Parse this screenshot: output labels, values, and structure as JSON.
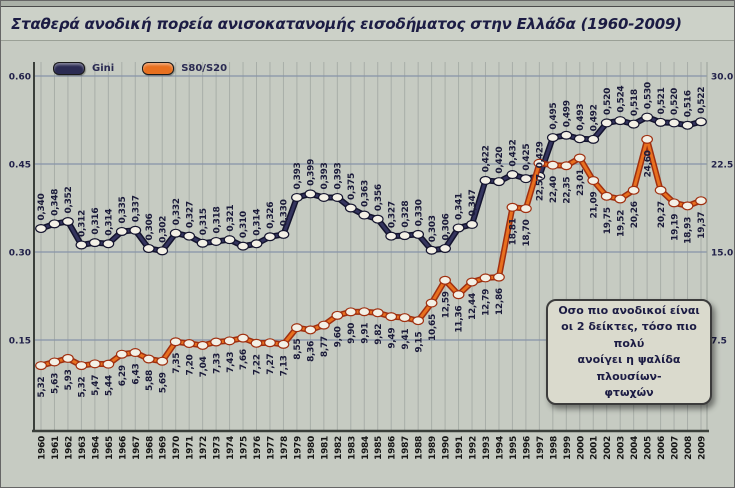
{
  "title": "Σταθερά ανοδική πορεία ανισοκατανομής εισοδήματος στην Ελλάδα (1960-2009)",
  "legend": [
    {
      "label": "Gini",
      "color": "#2b2b52"
    },
    {
      "label": "S80/S20",
      "color": "#e8701f"
    }
  ],
  "annotation": {
    "lines": [
      "Οσο πιο ανοδικοί είναι",
      "οι 2 δείκτες, τόσο πιο πολύ",
      "ανοίγει η ψαλίδα πλουσίων-",
      "φτωχών"
    ]
  },
  "chart_data": {
    "type": "line",
    "title": "Σταθερά ανοδική πορεία ανισοκατανομής εισοδήματος στην Ελλάδα (1960-2009)",
    "grid": true,
    "legend_position": "top-left",
    "decimal_separator": ",",
    "x_years": [
      "1960",
      "1961",
      "1962",
      "1963",
      "1964",
      "1965",
      "1966",
      "1967",
      "1968",
      "1969",
      "1970",
      "1971",
      "1972",
      "1973",
      "1974",
      "1975",
      "1976",
      "1977",
      "1978",
      "1979",
      "1980",
      "1981",
      "1982",
      "1983",
      "1984",
      "1985",
      "1986",
      "1987",
      "1988",
      "1989",
      "1990",
      "1991",
      "1992",
      "1993",
      "1994",
      "1995",
      "1996",
      "1997",
      "1998",
      "1999",
      "2000",
      "2001",
      "2002",
      "2003",
      "2004",
      "2005",
      "2006",
      "2007",
      "2008",
      "2009"
    ],
    "left_ticks": [
      "0.60",
      "0.45",
      "0.30",
      "0.15"
    ],
    "right_ticks": [
      "30.0",
      "22.5",
      "15.0",
      "7.5"
    ],
    "left_axis_range": [
      0.05,
      0.65
    ],
    "right_to_left_scale": 50,
    "series": [
      {
        "name": "Gini",
        "axis": "left",
        "color": "#34345e",
        "edge_color": "#14142e",
        "decimals": 3,
        "values": [
          0.34,
          0.348,
          0.352,
          0.312,
          0.316,
          0.314,
          0.335,
          0.337,
          0.306,
          0.302,
          0.332,
          0.327,
          0.315,
          0.318,
          0.321,
          0.31,
          0.314,
          0.326,
          0.33,
          0.393,
          0.399,
          0.393,
          0.393,
          0.375,
          0.363,
          0.356,
          0.327,
          0.328,
          0.33,
          0.303,
          0.306,
          0.341,
          0.347,
          0.422,
          0.42,
          0.432,
          0.425,
          0.429,
          0.495,
          0.499,
          0.493,
          0.492,
          0.52,
          0.524,
          0.518,
          0.53,
          0.521,
          0.52,
          0.516,
          0.522
        ]
      },
      {
        "name": "S80/S20",
        "axis": "right",
        "color": "#e8701f",
        "edge_color": "#a03010",
        "decimals": 2,
        "values": [
          5.32,
          5.63,
          5.93,
          5.32,
          5.47,
          5.44,
          6.29,
          6.43,
          5.88,
          5.69,
          7.35,
          7.2,
          7.04,
          7.33,
          7.43,
          7.66,
          7.22,
          7.27,
          7.13,
          8.55,
          8.36,
          8.77,
          9.6,
          9.9,
          9.91,
          9.82,
          9.49,
          9.41,
          9.15,
          10.65,
          12.59,
          11.36,
          12.44,
          12.79,
          12.86,
          18.81,
          18.7,
          22.57,
          22.4,
          22.35,
          23.01,
          21.09,
          19.75,
          19.52,
          20.26,
          24.6,
          20.27,
          19.19,
          18.93,
          19.37
        ]
      }
    ]
  }
}
